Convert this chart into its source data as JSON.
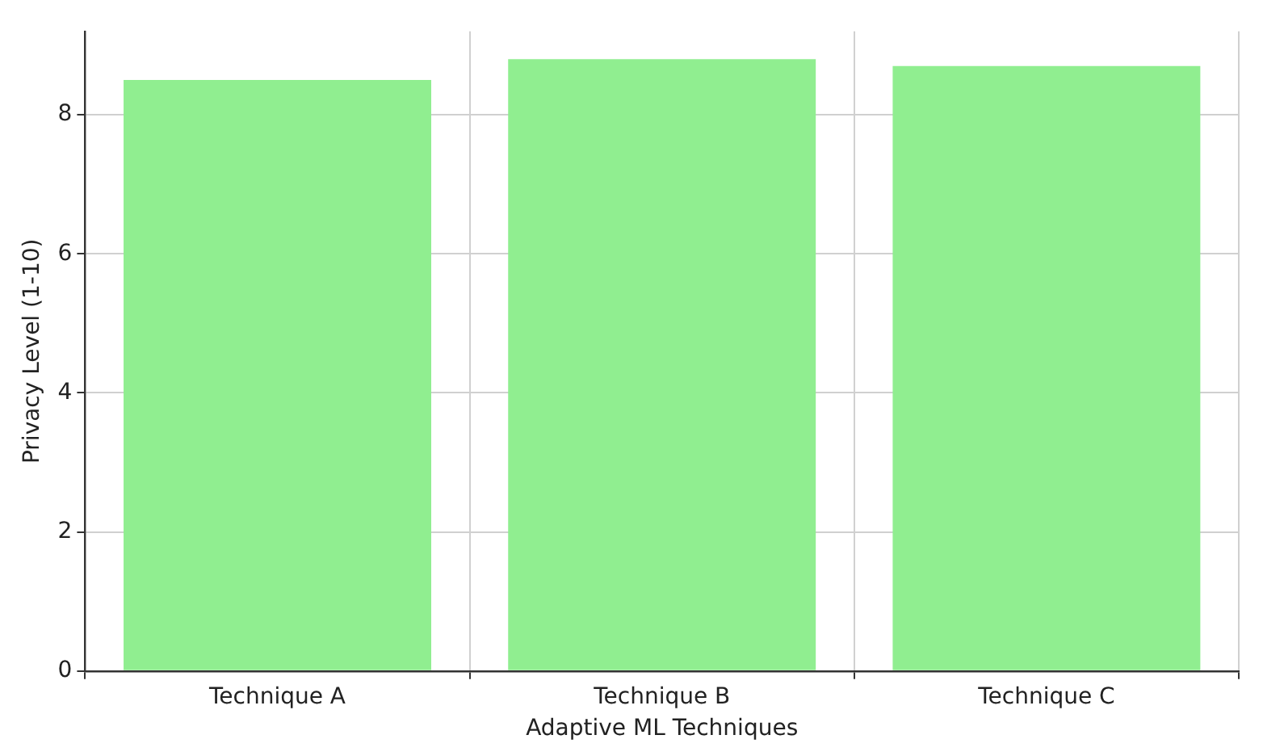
{
  "chart_data": {
    "type": "bar",
    "xlabel": "Adaptive ML Techniques",
    "ylabel": "Privacy Level (1-10)",
    "categories": [
      "Technique A",
      "Technique B",
      "Technique C"
    ],
    "values": [
      8.5,
      8.8,
      8.7
    ],
    "color": "#90ee90",
    "ylim": [
      0,
      9.2
    ],
    "yticks": [
      0,
      2,
      4,
      6,
      8
    ],
    "grid": true
  }
}
